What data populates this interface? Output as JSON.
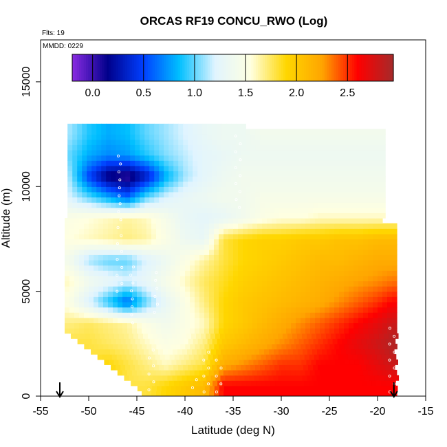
{
  "chart_data": {
    "type": "heatmap",
    "title": "ORCAS RF19 CONCU_RWO (Log)",
    "annotations": {
      "flights": "Flts: 19",
      "mmdd": "MMDD: 0229"
    },
    "xlabel": "Latitude (deg N)",
    "ylabel": "Altitude (m)",
    "xlim": [
      -55,
      -15
    ],
    "ylim": [
      0,
      17000
    ],
    "x_ticks": [
      -55,
      -50,
      -45,
      -40,
      -35,
      -30,
      -25,
      -20,
      -15
    ],
    "y_ticks": [
      0,
      5000,
      10000,
      15000
    ],
    "colorbar": {
      "range": [
        -0.2,
        2.95
      ],
      "ticks": [
        0.0,
        0.5,
        1.0,
        1.5,
        2.0,
        2.5
      ],
      "tick_labels": [
        "0.0",
        "0.5",
        "1.0",
        "1.5",
        "2.0",
        "2.5"
      ],
      "placement": "top-inside",
      "colors": [
        "#8a2be2",
        "#00008b",
        "#0040ff",
        "#00bfff",
        "#e0f4ff",
        "#ffffe0",
        "#ffd700",
        "#ffa500",
        "#ff0000",
        "#a52a2a"
      ]
    },
    "arrows_lat": [
      -53,
      -18.3
    ],
    "value_grid": {
      "description_lat": [
        -52,
        -50,
        -48,
        -46,
        -44,
        -42,
        -40,
        -38,
        -36,
        -34,
        -32,
        -30,
        -28,
        -26,
        -24,
        -22,
        -20,
        -18.5
      ],
      "altitudes": [
        500,
        1500,
        2500,
        3500,
        4500,
        5500,
        6500,
        7500,
        8500,
        9500,
        10500,
        11500,
        12500
      ],
      "values": [
        [
          null,
          null,
          null,
          null,
          1.8,
          1.9,
          2.0,
          2.1,
          2.6,
          2.6,
          2.6,
          2.6,
          2.6,
          2.6,
          2.6,
          2.6,
          2.6,
          2.6
        ],
        [
          null,
          null,
          1.9,
          1.8,
          1.7,
          1.6,
          1.7,
          1.8,
          2.2,
          2.3,
          2.4,
          2.5,
          2.5,
          2.6,
          2.6,
          2.6,
          2.7,
          2.8
        ],
        [
          1.8,
          1.8,
          1.75,
          1.7,
          1.6,
          1.5,
          1.55,
          1.7,
          2.0,
          2.1,
          2.2,
          2.3,
          2.4,
          2.5,
          2.6,
          2.7,
          2.8,
          2.9
        ],
        [
          1.7,
          1.75,
          1.7,
          1.65,
          1.5,
          1.4,
          1.5,
          1.6,
          1.9,
          2.0,
          2.1,
          2.2,
          2.3,
          2.4,
          2.5,
          2.6,
          2.7,
          2.8
        ],
        [
          1.5,
          1.2,
          0.9,
          0.6,
          1.0,
          1.3,
          1.5,
          1.7,
          1.9,
          2.0,
          2.05,
          2.1,
          2.15,
          2.2,
          2.3,
          2.4,
          2.5,
          2.6
        ],
        [
          1.6,
          1.4,
          1.3,
          1.2,
          1.3,
          1.45,
          1.6,
          1.75,
          1.85,
          1.95,
          2.0,
          2.05,
          2.1,
          2.15,
          2.2,
          2.25,
          2.3,
          2.35
        ],
        [
          1.4,
          1.1,
          1.0,
          1.0,
          1.2,
          1.35,
          1.5,
          1.65,
          1.8,
          1.9,
          1.95,
          2.0,
          2.05,
          2.1,
          2.1,
          2.15,
          2.2,
          2.2
        ],
        [
          1.55,
          1.6,
          1.65,
          1.7,
          1.65,
          1.5,
          1.35,
          1.3,
          1.8,
          1.9,
          1.95,
          1.95,
          2.0,
          2.0,
          2.05,
          2.05,
          2.1,
          2.1
        ],
        [
          1.5,
          1.55,
          1.6,
          1.65,
          1.6,
          1.45,
          1.3,
          1.25,
          1.3,
          1.4,
          1.5,
          1.55,
          1.55,
          1.6,
          1.6,
          1.6,
          1.6,
          1.6
        ],
        [
          1.2,
          1.0,
          0.8,
          0.6,
          1.0,
          1.2,
          1.3,
          1.35,
          1.4,
          1.4,
          1.45,
          1.45,
          1.45,
          1.45,
          1.45,
          1.45,
          1.45,
          1.45
        ],
        [
          1.1,
          0.5,
          0.1,
          0.0,
          0.3,
          0.8,
          1.1,
          1.25,
          1.35,
          1.4,
          1.4,
          1.4,
          1.4,
          1.4,
          1.4,
          1.4,
          1.4,
          1.4
        ],
        [
          1.0,
          0.8,
          0.7,
          0.75,
          0.9,
          1.05,
          1.15,
          1.25,
          1.3,
          1.35,
          1.35,
          1.35,
          1.35,
          1.35,
          1.35,
          1.35,
          1.35,
          1.35
        ],
        [
          1.1,
          0.9,
          0.8,
          0.85,
          1.0,
          1.1,
          1.2,
          1.3,
          1.35,
          1.35,
          1.4,
          1.4,
          1.4,
          1.4,
          1.4,
          1.4,
          1.4,
          null
        ]
      ]
    }
  }
}
